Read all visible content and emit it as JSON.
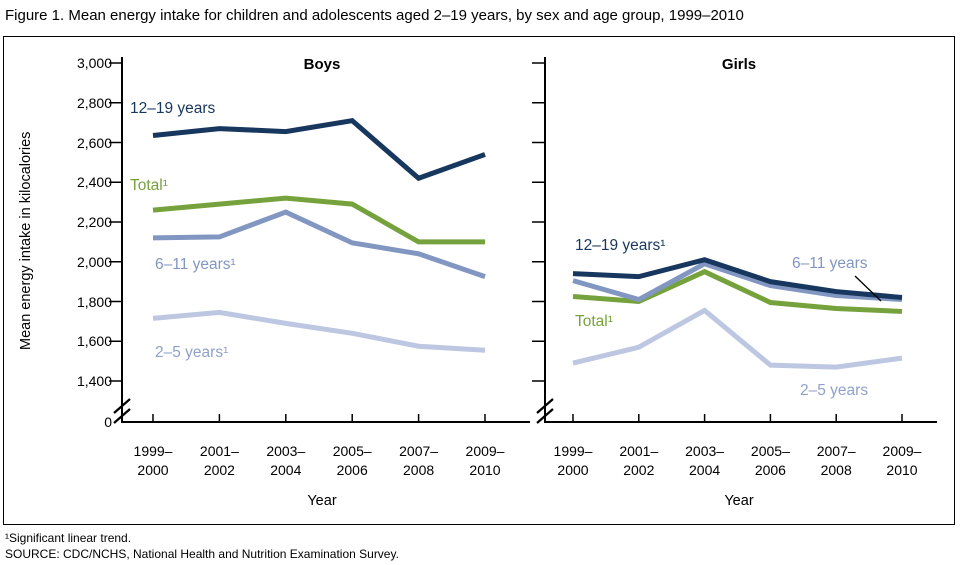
{
  "title": "Figure 1. Mean energy intake for children and adolescents aged 2–19 years, by sex and age group, 1999–2010",
  "footnotes": {
    "trend": "¹Significant linear trend.",
    "source": "SOURCE: CDC/NCHS, National Health and Nutrition Examination Survey."
  },
  "chart_data": {
    "type": "line",
    "xlabel": "Year",
    "ylabel": "Mean energy intake in kilocalories",
    "ylim": [
      1400,
      3000
    ],
    "y_axis_break_to_zero": true,
    "zero_label": "0",
    "grid": false,
    "legend_position": "inline-labels-on-lines",
    "y_ticks": [
      {
        "value": 3000,
        "label": "3,000"
      },
      {
        "value": 2800,
        "label": "2,800"
      },
      {
        "value": 2600,
        "label": "2,600"
      },
      {
        "value": 2400,
        "label": "2,400"
      },
      {
        "value": 2200,
        "label": "2,200"
      },
      {
        "value": 2000,
        "label": "2,000"
      },
      {
        "value": 1800,
        "label": "1,800"
      },
      {
        "value": 1600,
        "label": "1,600"
      },
      {
        "value": 1400,
        "label": "1,400"
      }
    ],
    "x_categories": [
      "1999–\n2000",
      "2001–\n2002",
      "2003–\n2004",
      "2005–\n2006",
      "2007–\n2008",
      "2009–\n2010"
    ],
    "panels": [
      {
        "title": "Boys",
        "series": [
          {
            "name": "12-19-years",
            "label": "12–19 years",
            "color": "#17375e",
            "values": [
              2635,
              2670,
              2655,
              2710,
              2420,
              2540
            ]
          },
          {
            "name": "total",
            "label": "Total¹",
            "color": "#76a23d",
            "values": [
              2260,
              2290,
              2320,
              2290,
              2100,
              2100
            ]
          },
          {
            "name": "6-11-years",
            "label": "6–11 years¹",
            "color": "#8296c2",
            "values": [
              2120,
              2125,
              2250,
              2095,
              2040,
              1925
            ]
          },
          {
            "name": "2-5-years",
            "label": "2–5 years¹",
            "color": "#bdc7e1",
            "label_color": "#8fa0ca",
            "values": [
              1715,
              1745,
              1690,
              1640,
              1575,
              1555
            ]
          }
        ]
      },
      {
        "title": "Girls",
        "label_pointer": {
          "from_label": "6–11 years",
          "to_series": "6-11-years"
        },
        "series": [
          {
            "name": "12-19-years",
            "label": "12–19 years¹",
            "color": "#17375e",
            "values": [
              1940,
              1925,
              2010,
              1900,
              1850,
              1820
            ]
          },
          {
            "name": "6-11-years",
            "label": "6–11 years",
            "color": "#8296c2",
            "values": [
              1905,
              1810,
              1990,
              1880,
              1830,
              1810
            ]
          },
          {
            "name": "total",
            "label": "Total¹",
            "color": "#76a23d",
            "values": [
              1825,
              1800,
              1950,
              1795,
              1765,
              1750
            ]
          },
          {
            "name": "2-5-years",
            "label": "2–5 years",
            "color": "#bdc7e1",
            "label_color": "#8fa0ca",
            "values": [
              1490,
              1570,
              1755,
              1480,
              1470,
              1515
            ]
          }
        ]
      }
    ]
  }
}
